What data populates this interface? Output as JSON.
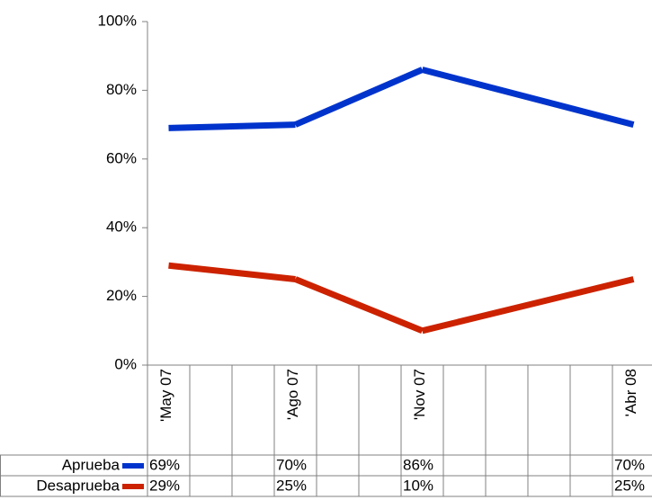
{
  "chart_data": {
    "type": "line",
    "categories": [
      "'May 07",
      null,
      null,
      "'Ago 07",
      null,
      null,
      "'Nov 07",
      null,
      null,
      null,
      null,
      "'Abr 08"
    ],
    "series": [
      {
        "name": "Aprueba",
        "color": "#0033cc",
        "values": [
          69,
          null,
          null,
          70,
          null,
          null,
          86,
          null,
          null,
          null,
          null,
          70
        ],
        "value_labels": [
          "69%",
          null,
          null,
          "70%",
          null,
          null,
          "86%",
          null,
          null,
          null,
          null,
          "70%"
        ]
      },
      {
        "name": "Desaprueba",
        "color": "#cc2200",
        "values": [
          29,
          null,
          null,
          25,
          null,
          null,
          10,
          null,
          null,
          null,
          null,
          25
        ],
        "value_labels": [
          "29%",
          null,
          null,
          "25%",
          null,
          null,
          "10%",
          null,
          null,
          null,
          null,
          "25%"
        ]
      }
    ],
    "ylim": [
      0,
      100
    ],
    "yticks": [
      {
        "value": 0,
        "label": "0%"
      },
      {
        "value": 20,
        "label": "20%"
      },
      {
        "value": 40,
        "label": "40%"
      },
      {
        "value": 60,
        "label": "60%"
      },
      {
        "value": 80,
        "label": "80%"
      },
      {
        "value": 100,
        "label": "100%"
      }
    ],
    "grid": false,
    "legend": "table"
  }
}
